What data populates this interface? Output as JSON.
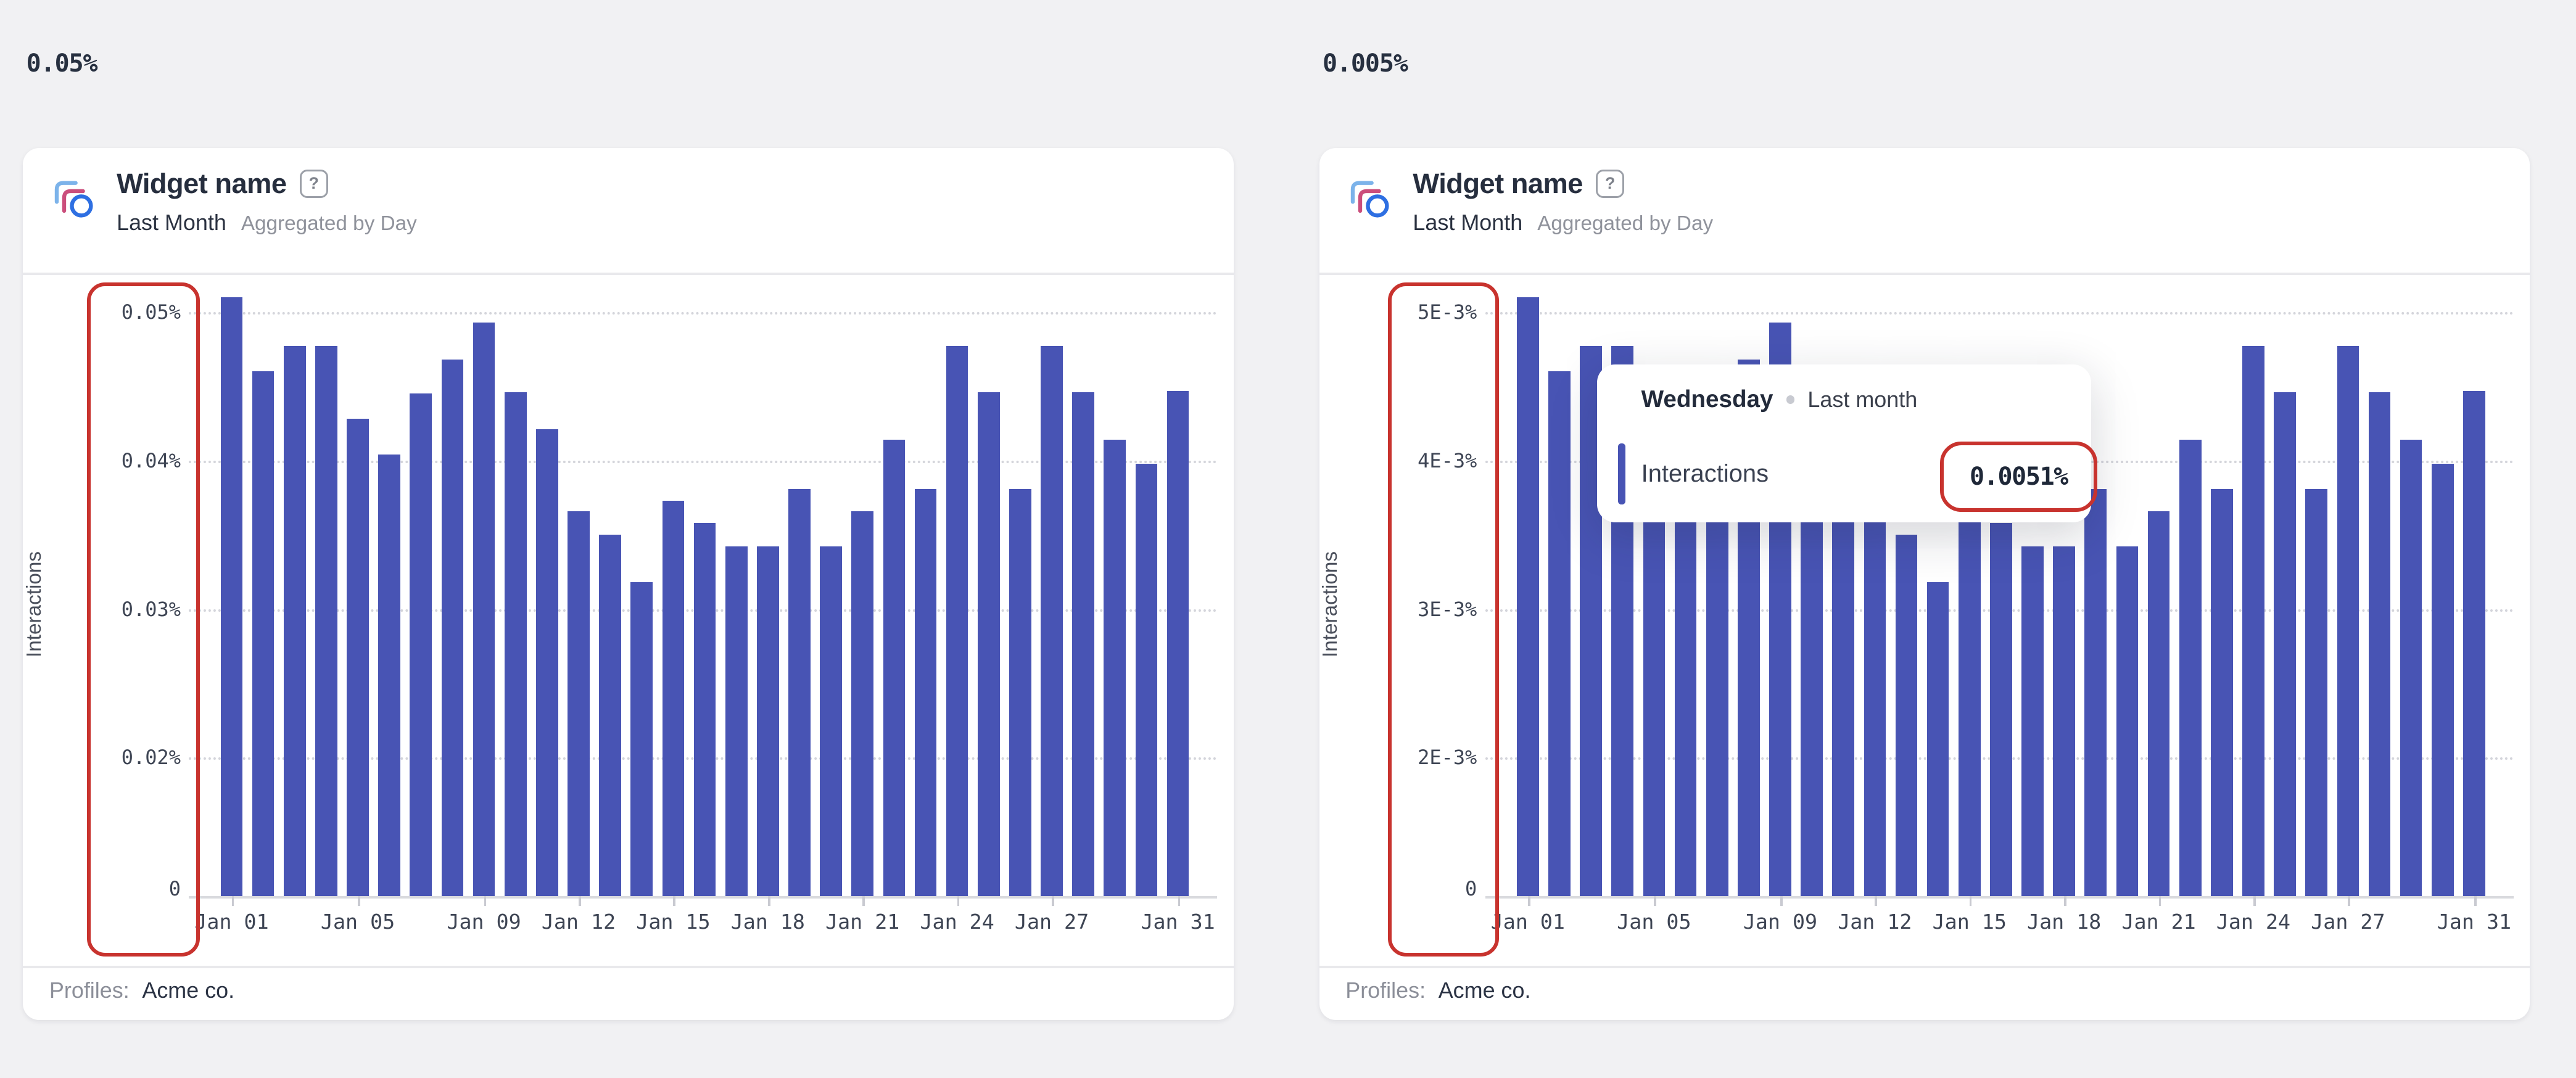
{
  "page": {
    "left_format_label": "0.05%",
    "right_format_label": "0.005%"
  },
  "widgets": [
    {
      "title": "Widget name",
      "help_icon": "question-mark",
      "date_range": "Last Month",
      "aggregation": "Aggregated by Day",
      "y_axis_title": "Interactions",
      "footer_label": "Profiles:",
      "footer_value": "Acme co."
    },
    {
      "title": "Widget name",
      "help_icon": "question-mark",
      "date_range": "Last Month",
      "aggregation": "Aggregated by Day",
      "y_axis_title": "Interactions",
      "footer_label": "Profiles:",
      "footer_value": "Acme co."
    }
  ],
  "tooltip": {
    "title": "Wednesday",
    "series_label": "Last month",
    "metric_label": "Interactions",
    "value": "0.0051%"
  },
  "colors": {
    "bar_blue": "#4854b4",
    "annotation_red": "#c8332e",
    "icon_light_blue": "#7cb3ea",
    "icon_pink": "#cb4e7c",
    "icon_circle_blue": "#2e6fe2",
    "page_background": "#f1f1f3"
  },
  "chart_data": [
    {
      "type": "bar",
      "title": "Widget name",
      "series_name": "Interactions",
      "legend": "Last month",
      "unit": "percent",
      "grid": "dotted-horizontal",
      "bar_color": "#4854b4",
      "ylim": [
        0,
        0.05
      ],
      "y_ticks": [
        "0.05%",
        "0.04%",
        "0.03%",
        "0.02%",
        "0"
      ],
      "x": [
        "Jan 01",
        "Jan 02",
        "Jan 03",
        "Jan 04",
        "Jan 05",
        "Jan 06",
        "Jan 07",
        "Jan 08",
        "Jan 09",
        "Jan 10",
        "Jan 11",
        "Jan 12",
        "Jan 13",
        "Jan 14",
        "Jan 15",
        "Jan 16",
        "Jan 17",
        "Jan 18",
        "Jan 19",
        "Jan 20",
        "Jan 21",
        "Jan 22",
        "Jan 23",
        "Jan 24",
        "Jan 25",
        "Jan 26",
        "Jan 27",
        "Jan 28",
        "Jan 29",
        "Jan 30",
        "Jan 31"
      ],
      "values": [
        0.051,
        0.046,
        0.0477,
        0.0477,
        0.0428,
        0.0404,
        0.0445,
        0.0468,
        0.0493,
        0.0446,
        0.0421,
        0.0366,
        0.035,
        0.0318,
        0.0373,
        0.0358,
        0.0342,
        0.0342,
        0.0381,
        0.0342,
        0.0366,
        0.0414,
        0.0381,
        0.0477,
        0.0446,
        0.0381,
        0.0477,
        0.0446,
        0.0414,
        0.0398,
        0.0447
      ],
      "x_labeled_ticks": [
        {
          "label": "Jan 01",
          "index": 0
        },
        {
          "label": "Jan 05",
          "index": 4
        },
        {
          "label": "Jan 09",
          "index": 8
        },
        {
          "label": "Jan 12",
          "index": 11
        },
        {
          "label": "Jan 15",
          "index": 14
        },
        {
          "label": "Jan 18",
          "index": 17
        },
        {
          "label": "Jan 21",
          "index": 20
        },
        {
          "label": "Jan 24",
          "index": 23
        },
        {
          "label": "Jan 27",
          "index": 26
        },
        {
          "label": "Jan 31",
          "index": 30
        }
      ]
    },
    {
      "type": "bar",
      "title": "Widget name",
      "series_name": "Interactions",
      "legend": "Last month",
      "unit": "percent",
      "grid": "dotted-horizontal",
      "bar_color": "#4854b4",
      "ylim": [
        0,
        0.005
      ],
      "y_ticks": [
        "5E-3%",
        "4E-3%",
        "3E-3%",
        "2E-3%",
        "0"
      ],
      "x": [
        "Jan 01",
        "Jan 02",
        "Jan 03",
        "Jan 04",
        "Jan 05",
        "Jan 06",
        "Jan 07",
        "Jan 08",
        "Jan 09",
        "Jan 10",
        "Jan 11",
        "Jan 12",
        "Jan 13",
        "Jan 14",
        "Jan 15",
        "Jan 16",
        "Jan 17",
        "Jan 18",
        "Jan 19",
        "Jan 20",
        "Jan 21",
        "Jan 22",
        "Jan 23",
        "Jan 24",
        "Jan 25",
        "Jan 26",
        "Jan 27",
        "Jan 28",
        "Jan 29",
        "Jan 30",
        "Jan 31"
      ],
      "values": [
        0.0051,
        0.0046,
        0.00477,
        0.00477,
        0.00428,
        0.00404,
        0.00445,
        0.00468,
        0.00493,
        0.00446,
        0.00421,
        0.00366,
        0.0035,
        0.00318,
        0.00373,
        0.00358,
        0.00342,
        0.00342,
        0.00381,
        0.00342,
        0.00366,
        0.00414,
        0.00381,
        0.00477,
        0.00446,
        0.00381,
        0.00477,
        0.00446,
        0.00414,
        0.00398,
        0.00447
      ],
      "x_labeled_ticks": [
        {
          "label": "Jan 01",
          "index": 0
        },
        {
          "label": "Jan 05",
          "index": 4
        },
        {
          "label": "Jan 09",
          "index": 8
        },
        {
          "label": "Jan 12",
          "index": 11
        },
        {
          "label": "Jan 15",
          "index": 14
        },
        {
          "label": "Jan 18",
          "index": 17
        },
        {
          "label": "Jan 21",
          "index": 20
        },
        {
          "label": "Jan 24",
          "index": 23
        },
        {
          "label": "Jan 27",
          "index": 26
        },
        {
          "label": "Jan 31",
          "index": 30
        }
      ],
      "hovered_point": {
        "day": "Wednesday",
        "series": "Last month",
        "metric": "Interactions",
        "value": "0.0051%"
      }
    }
  ]
}
